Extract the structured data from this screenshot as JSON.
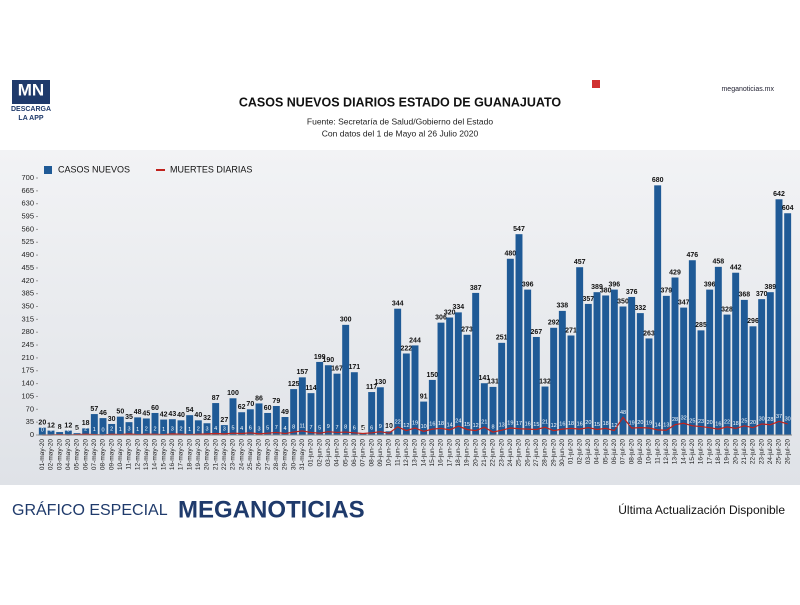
{
  "header": {
    "logo": "MN",
    "logo_sub": "DESCARGA",
    "logo_app": "LA APP",
    "site": "meganoticias.mx"
  },
  "chart_data": {
    "type": "bar",
    "title": "CASOS NUEVOS DIARIOS ESTADO DE GUANAJUATO",
    "subtitle": "Fuente: Secretaría de Salud/Gobierno del Estado",
    "note": "Con datos del 1 de Mayo al 26 Julio 2020",
    "categories": [
      "01-may-20",
      "02-may-20",
      "03-may-20",
      "04-may-20",
      "05-may-20",
      "06-may-20",
      "07-may-20",
      "08-may-20",
      "09-may-20",
      "10-may-20",
      "11-may-20",
      "12-may-20",
      "13-may-20",
      "14-may-20",
      "15-may-20",
      "16-may-20",
      "17-may-20",
      "18-may-20",
      "19-may-20",
      "20-may-20",
      "21-may-20",
      "22-may-20",
      "23-may-20",
      "24-may-20",
      "25-may-20",
      "26-may-20",
      "27-may-20",
      "28-may-20",
      "29-may-20",
      "30-may-20",
      "31-may-20",
      "01-jun-20",
      "02-jun-20",
      "03-jun-20",
      "04-jun-20",
      "05-jun-20",
      "06-jun-20",
      "07-jun-20",
      "08-jun-20",
      "09-jun-20",
      "10-jun-20",
      "11-jun-20",
      "12-jun-20",
      "13-jun-20",
      "14-jun-20",
      "15-jun-20",
      "16-jun-20",
      "17-jun-20",
      "18-jun-20",
      "19-jun-20",
      "20-jun-20",
      "21-jun-20",
      "22-jun-20",
      "23-jun-20",
      "24-jun-20",
      "25-jun-20",
      "26-jun-20",
      "27-jun-20",
      "28-jun-20",
      "29-jun-20",
      "30-jun-20",
      "01-jul-20",
      "02-jul-20",
      "03-jul-20",
      "04-jul-20",
      "05-jul-20",
      "06-jul-20",
      "07-jul-20",
      "08-jul-20",
      "09-jul-20",
      "10-jul-20",
      "11-jul-20",
      "12-jul-20",
      "13-jul-20",
      "14-jul-20",
      "15-jul-20",
      "16-jul-20",
      "17-jul-20",
      "18-jul-20",
      "19-jul-20",
      "20-jul-20",
      "21-jul-20",
      "22-jul-20",
      "23-jul-20",
      "24-jul-20",
      "25-jul-20",
      "26-jul-20"
    ],
    "series": [
      {
        "name": "CASOS NUEVOS",
        "color": "#1f5a96",
        "values": [
          20,
          12,
          8,
          12,
          5,
          18,
          57,
          46,
          30,
          50,
          35,
          48,
          45,
          60,
          42,
          43,
          40,
          54,
          40,
          32,
          87,
          27,
          100,
          62,
          70,
          86,
          60,
          79,
          49,
          125,
          157,
          114,
          199,
          190,
          167,
          300,
          171,
          5,
          117,
          130,
          10,
          344,
          222,
          244,
          91,
          150,
          306,
          320,
          334,
          273,
          387,
          141,
          131,
          251,
          480,
          547,
          396,
          267,
          132,
          292,
          338,
          271,
          457,
          357,
          389,
          380,
          396,
          350,
          376,
          332,
          263,
          680,
          379,
          429,
          347,
          476,
          285,
          396,
          458,
          328,
          442,
          368,
          296,
          370,
          389,
          642,
          604
        ]
      },
      {
        "name": "MUERTES DIARIAS",
        "color": "#c0221c",
        "type": "line",
        "values": [
          0,
          0,
          1,
          0,
          1,
          2,
          1,
          0,
          2,
          1,
          3,
          1,
          2,
          2,
          1,
          3,
          2,
          1,
          2,
          3,
          4,
          3,
          5,
          4,
          6,
          3,
          5,
          7,
          4,
          8,
          11,
          7,
          5,
          9,
          7,
          8,
          6,
          4,
          6,
          9,
          5,
          22,
          12,
          19,
          10,
          16,
          18,
          14,
          24,
          15,
          12,
          21,
          8,
          13,
          19,
          17,
          16,
          15,
          21,
          12,
          16,
          18,
          16,
          20,
          15,
          18,
          12,
          48,
          19,
          20,
          19,
          14,
          13,
          28,
          32,
          25,
          23,
          20,
          16,
          22,
          18,
          25,
          20,
          30,
          28,
          37,
          30
        ]
      }
    ],
    "ylim": [
      0,
      700
    ],
    "yticks": [
      0,
      35,
      70,
      105,
      140,
      175,
      210,
      245,
      280,
      315,
      350,
      385,
      420,
      455,
      490,
      525,
      560,
      595,
      630,
      665,
      700
    ],
    "legend": "top-left"
  },
  "footer": {
    "left": "GRÁFICO ESPECIAL",
    "brand": "MEGANOTICIAS",
    "right": "Última Actualización Disponible"
  }
}
